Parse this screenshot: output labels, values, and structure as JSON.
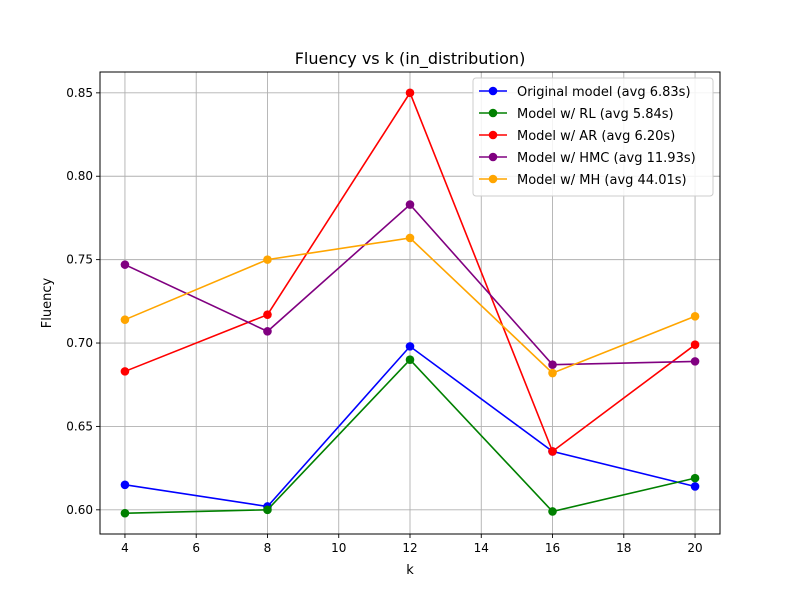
{
  "chart_data": {
    "type": "line",
    "title": "Fluency vs k (in_distribution)",
    "xlabel": "k",
    "ylabel": "Fluency",
    "xlim": [
      3.3,
      20.7
    ],
    "ylim": [
      0.5855,
      0.8625
    ],
    "xticks": [
      4,
      6,
      8,
      10,
      12,
      14,
      16,
      18,
      20
    ],
    "yticks": [
      0.6,
      0.65,
      0.7,
      0.75,
      0.8,
      0.85
    ],
    "grid": true,
    "legend_position": "top-right",
    "x": [
      4,
      8,
      12,
      16,
      20
    ],
    "series": [
      {
        "name": "Original model (avg 6.83s)",
        "color": "#0000ff",
        "values": [
          0.615,
          0.602,
          0.698,
          0.635,
          0.614
        ]
      },
      {
        "name": "Model w/ RL (avg 5.84s)",
        "color": "#008000",
        "values": [
          0.598,
          0.6,
          0.69,
          0.599,
          0.619
        ]
      },
      {
        "name": "Model w/ AR (avg 6.20s)",
        "color": "#ff0000",
        "values": [
          0.683,
          0.717,
          0.85,
          0.635,
          0.699
        ]
      },
      {
        "name": "Model w/ HMC (avg 11.93s)",
        "color": "#800080",
        "values": [
          0.747,
          0.707,
          0.783,
          0.687,
          0.689
        ]
      },
      {
        "name": "Model w/ MH (avg 44.01s)",
        "color": "#ffa500",
        "values": [
          0.714,
          0.75,
          0.763,
          0.682,
          0.716
        ]
      }
    ]
  }
}
